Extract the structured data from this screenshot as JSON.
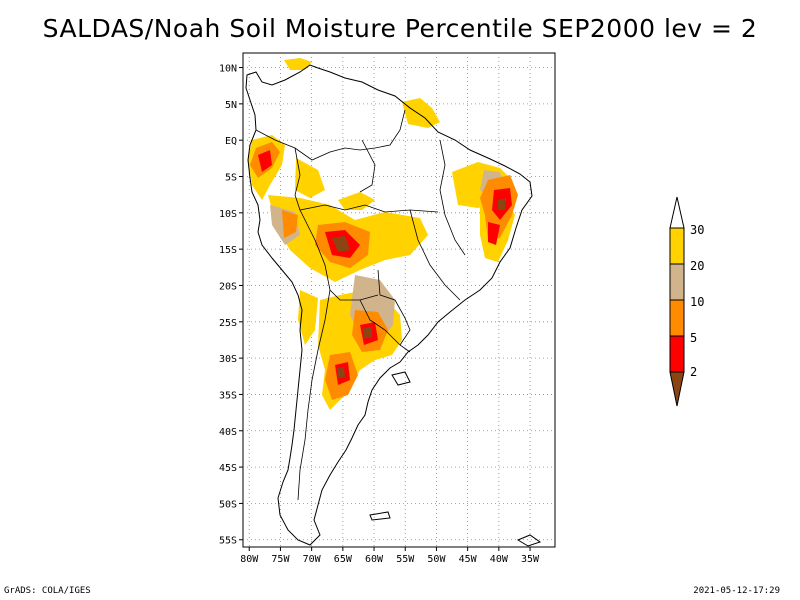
{
  "title": "SALDAS/Noah Soil Moisture Percentile SEP2000 lev = 2",
  "lat_labels": [
    "10N",
    "5N",
    "EQ",
    "5S",
    "10S",
    "15S",
    "20S",
    "25S",
    "30S",
    "35S",
    "40S",
    "45S",
    "50S",
    "55S"
  ],
  "lon_labels": [
    "80W",
    "75W",
    "70W",
    "65W",
    "60W",
    "55W",
    "50W",
    "45W",
    "40W",
    "35W"
  ],
  "colorbar": {
    "labels": [
      "30",
      "20",
      "10",
      "5",
      "2"
    ],
    "colors": {
      "above_30": "#ffffff",
      "20_30": "#ffd200",
      "10_20": "#d2b48c",
      "5_10": "#ff8c00",
      "2_5": "#ff0000",
      "below_2": "#8b4513"
    }
  },
  "footer_left": "GrADS: COLA/IGES",
  "footer_right": "2021-05-12-17:29"
}
